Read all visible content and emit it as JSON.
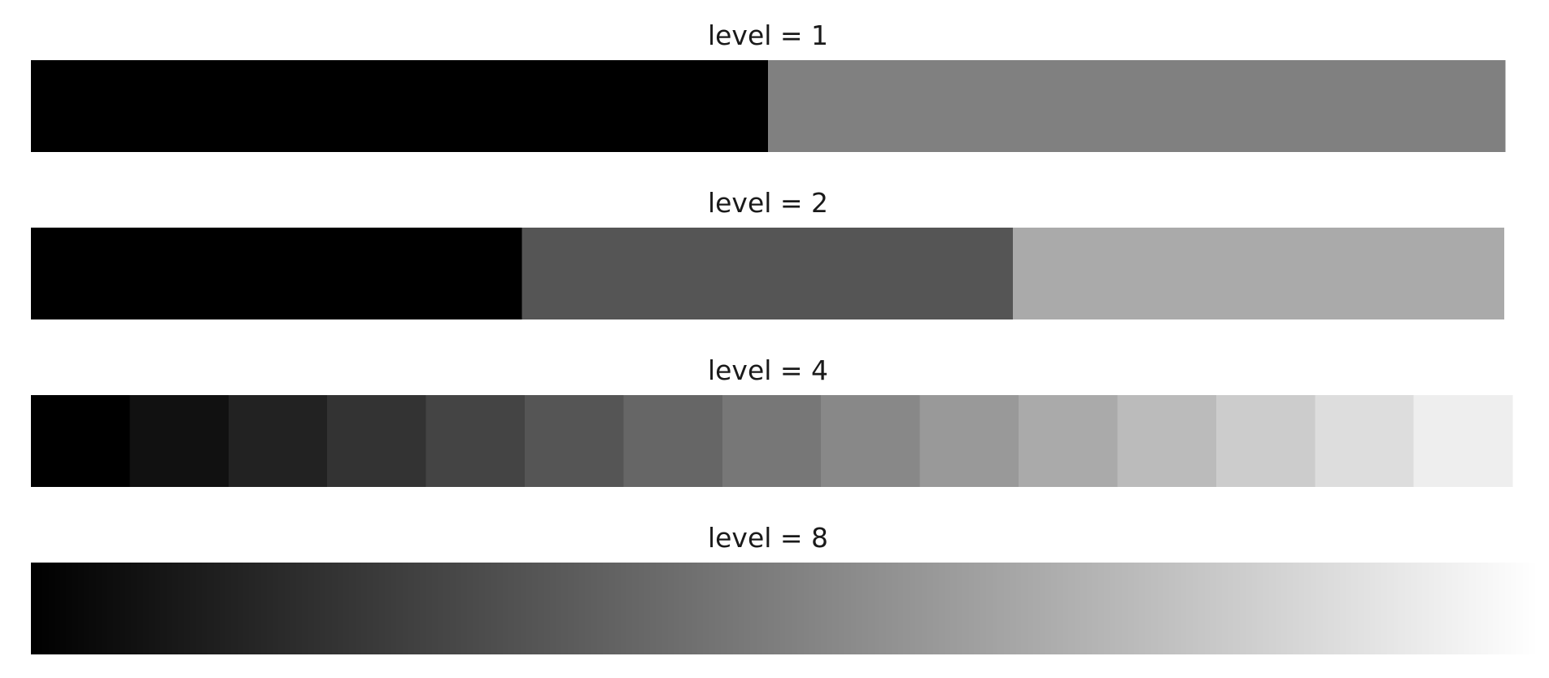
{
  "chart_data": [
    {
      "type": "heatmap",
      "title": "level = 1",
      "level": 1,
      "values": [
        0.0,
        0.5
      ]
    },
    {
      "type": "heatmap",
      "title": "level = 2",
      "level": 2,
      "values": [
        0.0,
        0.333,
        0.667
      ]
    },
    {
      "type": "heatmap",
      "title": "level = 4",
      "level": 4,
      "values": [
        0.0,
        0.067,
        0.133,
        0.2,
        0.267,
        0.333,
        0.4,
        0.467,
        0.533,
        0.6,
        0.667,
        0.733,
        0.8,
        0.867,
        0.933
      ]
    },
    {
      "type": "heatmap",
      "title": "level = 8",
      "level": 8,
      "values": [
        0.0,
        0.004,
        0.008,
        0.012,
        0.016,
        0.02,
        0.024,
        0.027,
        0.031,
        0.035,
        0.039,
        0.043,
        0.047,
        0.051,
        0.055,
        0.059,
        0.063,
        0.067,
        0.071,
        0.075,
        0.078,
        0.082,
        0.086,
        0.09,
        0.094,
        0.098,
        0.102,
        0.106,
        0.11,
        0.114,
        0.118,
        0.122,
        0.125,
        0.129,
        0.133,
        0.137,
        0.141,
        0.145,
        0.149,
        0.153,
        0.157,
        0.161,
        0.165,
        0.169,
        0.173,
        0.176,
        0.18,
        0.184,
        0.188,
        0.192,
        0.196,
        0.2,
        0.204,
        0.208,
        0.212,
        0.216,
        0.22,
        0.224,
        0.227,
        0.231,
        0.235,
        0.239,
        0.243,
        0.247,
        0.251,
        0.255,
        0.259,
        0.263,
        0.267,
        0.271,
        0.275,
        0.278,
        0.282,
        0.286,
        0.29,
        0.294,
        0.298,
        0.302,
        0.306,
        0.31,
        0.314,
        0.318,
        0.322,
        0.325,
        0.329,
        0.333,
        0.337,
        0.341,
        0.345,
        0.349,
        0.353,
        0.357,
        0.361,
        0.365,
        0.369,
        0.373,
        0.376,
        0.38,
        0.384,
        0.388,
        0.392,
        0.396,
        0.4,
        0.404,
        0.408,
        0.412,
        0.416,
        0.42,
        0.424,
        0.427,
        0.431,
        0.435,
        0.439,
        0.443,
        0.447,
        0.451,
        0.455,
        0.459,
        0.463,
        0.467,
        0.471,
        0.475,
        0.478,
        0.482,
        0.486,
        0.49,
        0.494,
        0.498,
        0.502,
        0.506,
        0.51,
        0.514,
        0.518,
        0.522,
        0.525,
        0.529,
        0.533,
        0.537,
        0.541,
        0.545,
        0.549,
        0.553,
        0.557,
        0.561,
        0.565,
        0.569,
        0.573,
        0.576,
        0.58,
        0.584,
        0.588,
        0.592,
        0.596,
        0.6,
        0.604,
        0.608,
        0.612,
        0.616,
        0.62,
        0.624,
        0.627,
        0.631,
        0.635,
        0.639,
        0.643,
        0.647,
        0.651,
        0.655,
        0.659,
        0.663,
        0.667,
        0.671,
        0.675,
        0.678,
        0.682,
        0.686,
        0.69,
        0.694,
        0.698,
        0.702,
        0.706,
        0.71,
        0.714,
        0.718,
        0.722,
        0.725,
        0.729,
        0.733,
        0.737,
        0.741,
        0.745,
        0.749,
        0.753,
        0.757,
        0.761,
        0.765,
        0.769,
        0.773,
        0.776,
        0.78,
        0.784,
        0.788,
        0.792,
        0.796,
        0.8,
        0.804,
        0.808,
        0.812,
        0.816,
        0.82,
        0.824,
        0.827,
        0.831,
        0.835,
        0.839,
        0.843,
        0.847,
        0.851,
        0.855,
        0.859,
        0.863,
        0.867,
        0.871,
        0.875,
        0.878,
        0.882,
        0.886,
        0.89,
        0.894,
        0.898,
        0.902,
        0.906,
        0.91,
        0.914,
        0.918,
        0.922,
        0.925,
        0.929,
        0.933,
        0.937,
        0.941,
        0.945,
        0.949,
        0.953,
        0.957,
        0.961,
        0.965,
        0.969,
        0.973,
        0.976,
        0.98,
        0.984,
        0.988,
        0.992,
        0.996
      ]
    }
  ]
}
